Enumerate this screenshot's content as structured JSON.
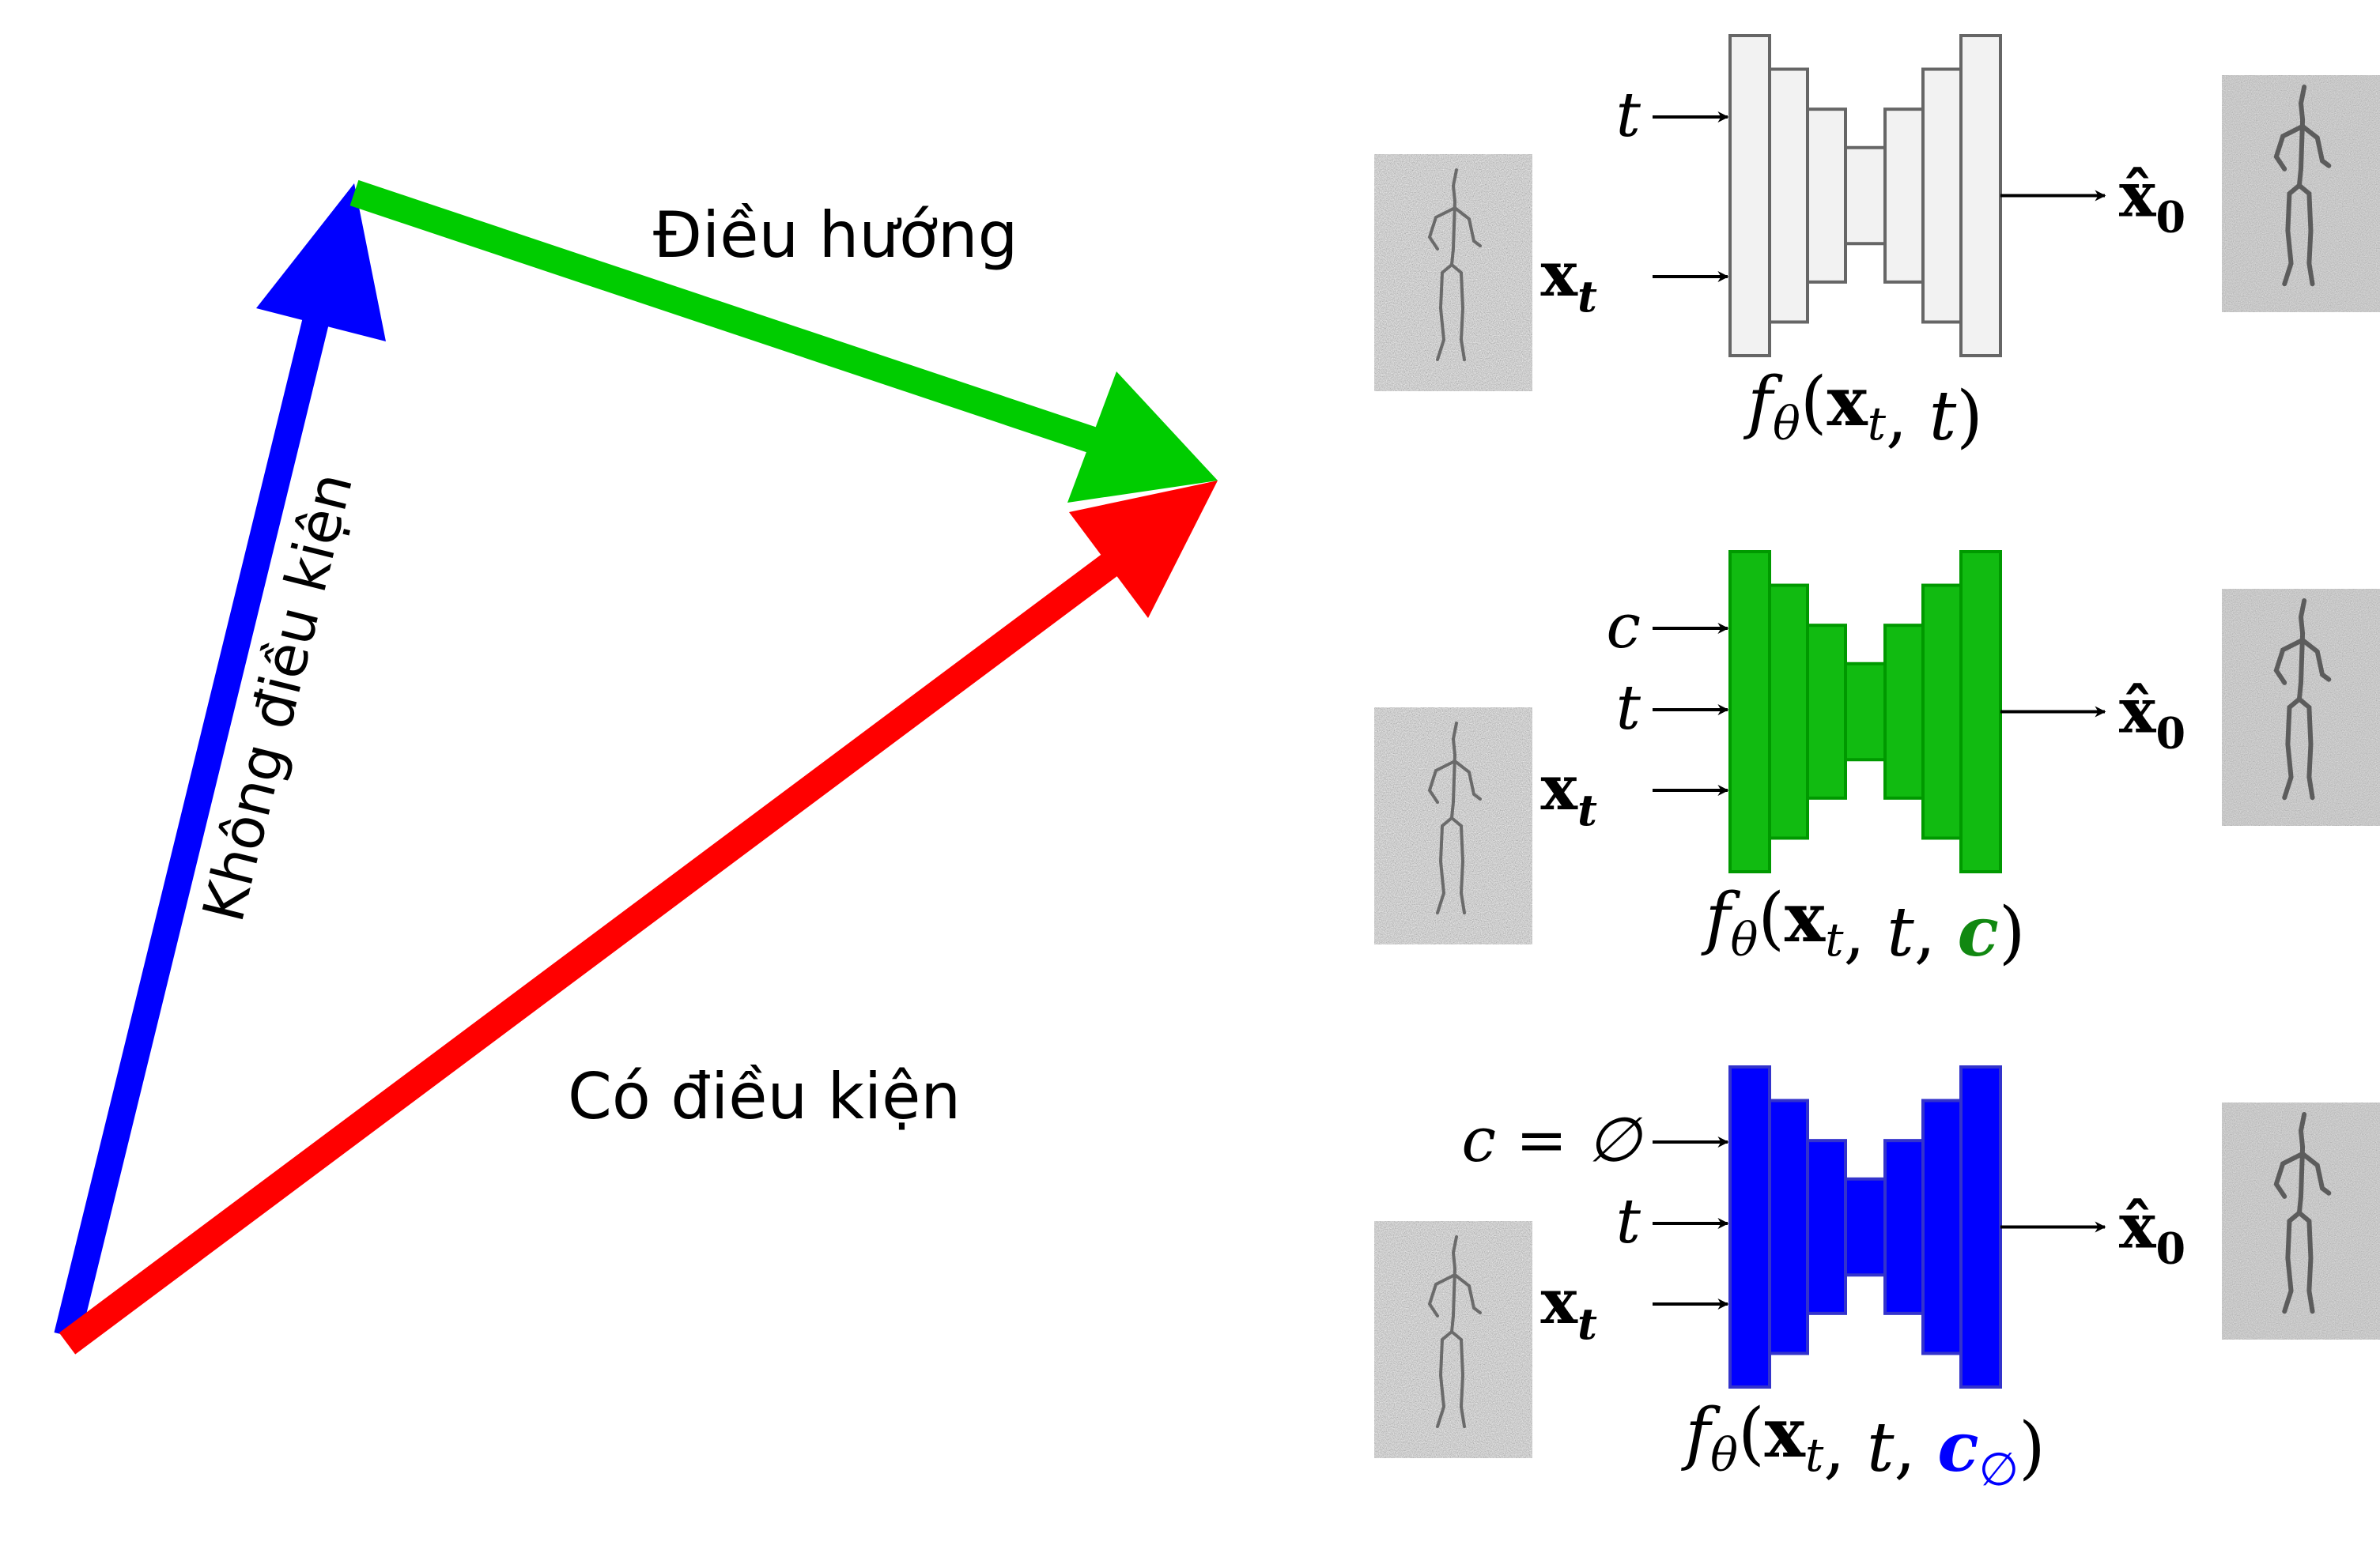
{
  "vector_diagram": {
    "unconditional_label": "Không điều kiện",
    "guidance_label": "Điều hướng",
    "conditional_label": "Có điều kiện",
    "colors": {
      "unconditional": "#0000ff",
      "guidance": "#00cc00",
      "conditional": "#ff0000"
    }
  },
  "networks": [
    {
      "id": "plain",
      "fill": "#f2f2f2",
      "stroke": "#666666",
      "inputs": [
        {
          "var": "t",
          "sub": ""
        },
        {
          "var": "x",
          "sub": "t",
          "bold": true
        }
      ],
      "output": {
        "var": "x̂",
        "sub": "0"
      },
      "caption": {
        "func": "f",
        "sub": "θ",
        "args_black": "(x",
        "args_sub": "t",
        "args_rest": ", t)",
        "cond": "",
        "cond_sub": "",
        "close": ""
      }
    },
    {
      "id": "conditional",
      "fill": "#11bb11",
      "stroke": "#009900",
      "inputs": [
        {
          "var": "c",
          "sub": ""
        },
        {
          "var": "t",
          "sub": ""
        },
        {
          "var": "x",
          "sub": "t",
          "bold": true
        }
      ],
      "output": {
        "var": "x̂",
        "sub": "0"
      },
      "caption": {
        "func": "f",
        "sub": "θ",
        "args_black": "(x",
        "args_sub": "t",
        "args_rest": ", t, ",
        "cond": "c",
        "cond_sub": "",
        "close": ")",
        "cond_color": "#118811"
      }
    },
    {
      "id": "null-conditional",
      "fill": "#0000ff",
      "stroke": "#3333cc",
      "inputs": [
        {
          "var": "c = ∅",
          "sub": ""
        },
        {
          "var": "t",
          "sub": ""
        },
        {
          "var": "x",
          "sub": "t",
          "bold": true
        }
      ],
      "output": {
        "var": "x̂",
        "sub": "0"
      },
      "caption": {
        "func": "f",
        "sub": "θ",
        "args_black": "(x",
        "args_sub": "t",
        "args_rest": ", t, ",
        "cond": "c",
        "cond_sub": "∅",
        "close": ")",
        "cond_color": "#0000ff"
      }
    }
  ]
}
